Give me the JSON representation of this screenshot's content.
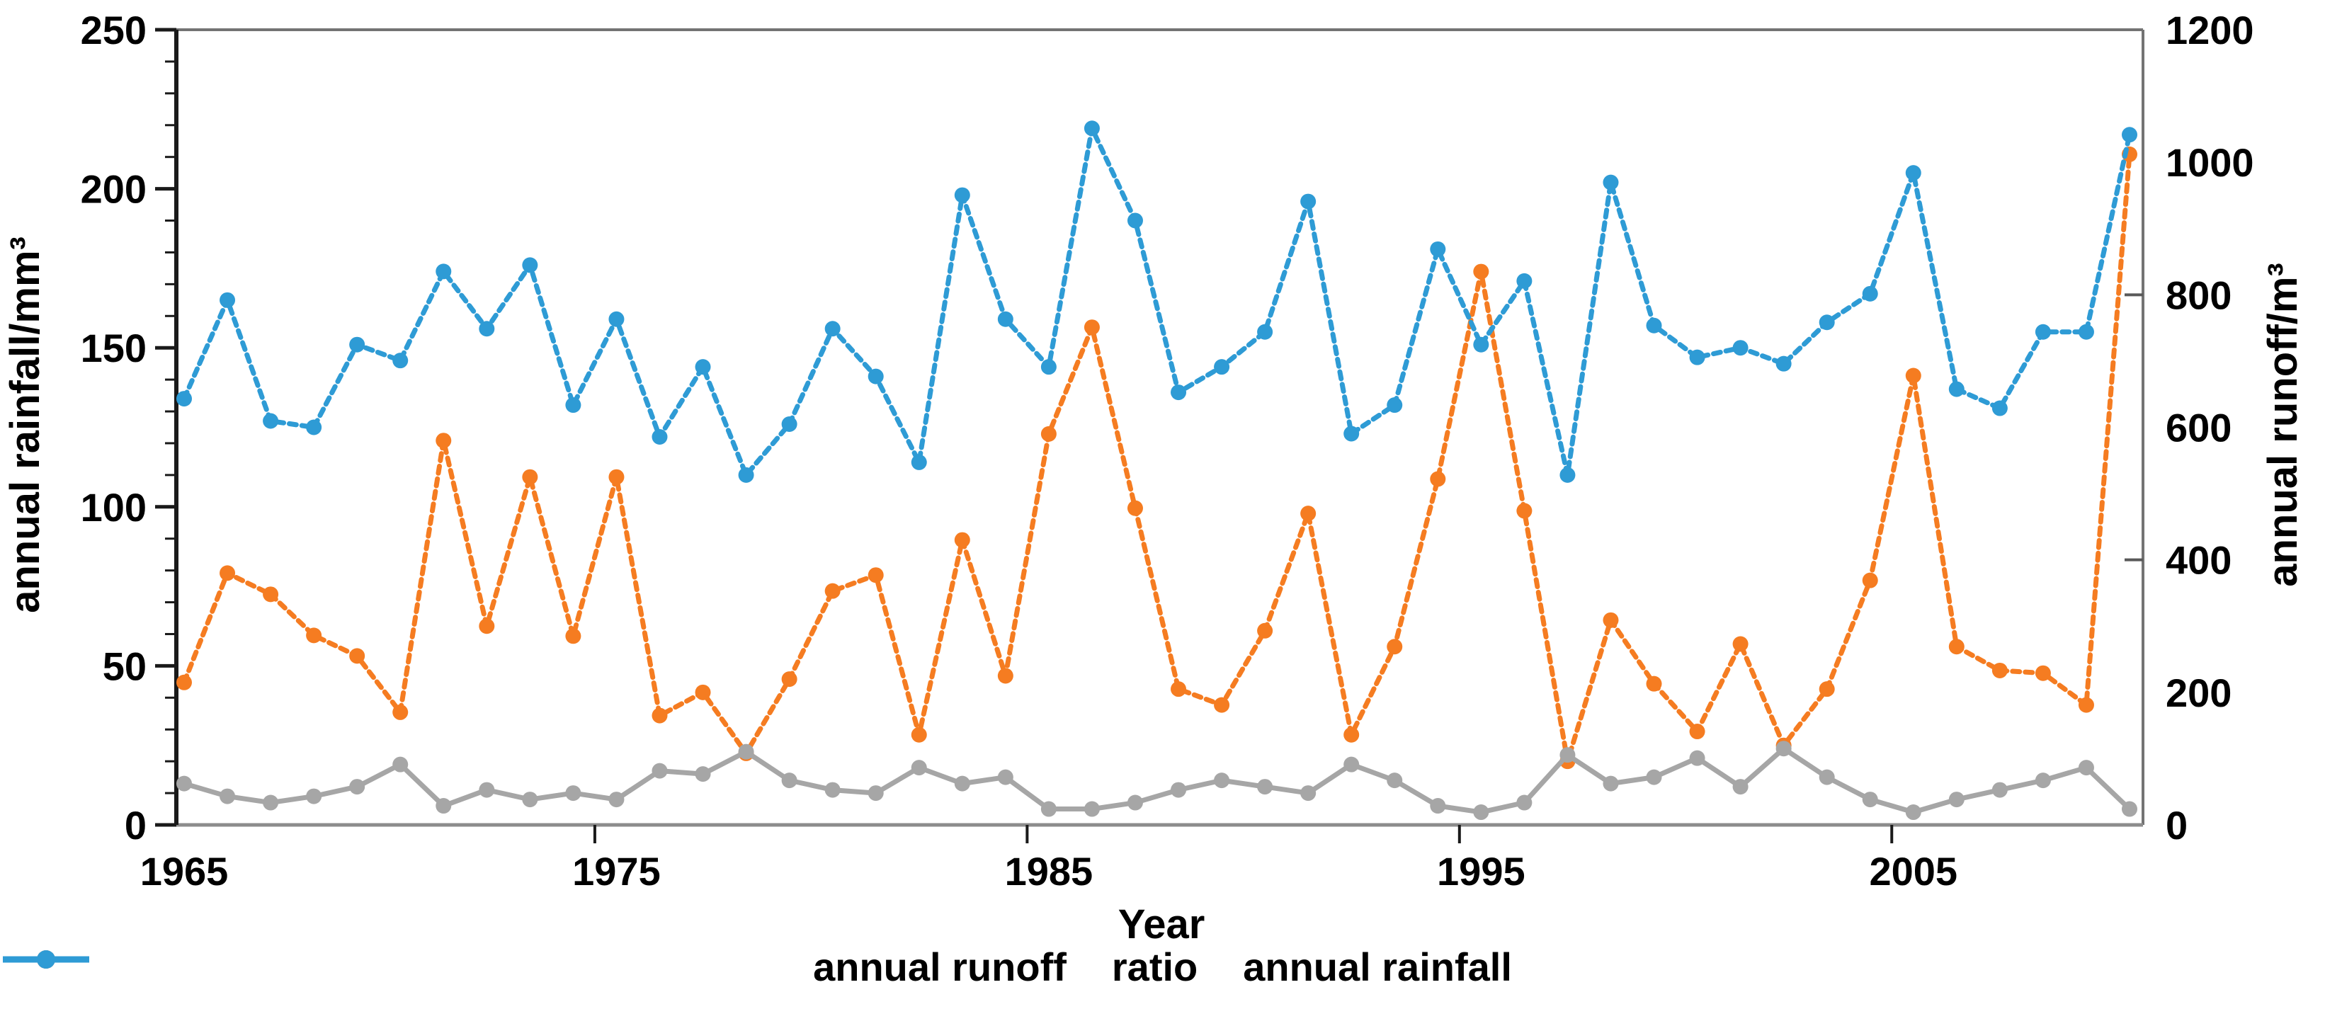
{
  "figure": {
    "xlabel": "Year",
    "left_axis_title": "annual rainfall/mm³",
    "right_axis_title": "annual runoff/m³"
  },
  "chart_data": {
    "type": "line",
    "title": "",
    "xlabel": "Year",
    "left_ylabel": "annual rainfall/mm³",
    "right_ylabel": "annual runoff/m³",
    "grid": false,
    "legend_position": "bottom",
    "x": [
      1965,
      1966,
      1967,
      1968,
      1969,
      1970,
      1971,
      1972,
      1973,
      1974,
      1975,
      1976,
      1977,
      1978,
      1979,
      1980,
      1981,
      1982,
      1983,
      1984,
      1985,
      1986,
      1987,
      1988,
      1989,
      1990,
      1991,
      1992,
      1993,
      1994,
      1995,
      1996,
      1997,
      1998,
      1999,
      2000,
      2001,
      2002,
      2003,
      2004,
      2005,
      2006,
      2007,
      2008,
      2009,
      2010
    ],
    "x_tick_labels": [
      1965,
      1975,
      1985,
      1995,
      2005
    ],
    "left_axis": {
      "min": 0,
      "max": 250,
      "label_step": 50,
      "minor_step": 10
    },
    "right_axis": {
      "min": 0,
      "max": 1200,
      "label_step": 200,
      "tick_marks": [
        400,
        800
      ]
    },
    "series": [
      {
        "name": "annual runoff",
        "axis": "right",
        "color": "#F57C21",
        "dashed": true,
        "values": [
          215,
          380,
          348,
          286,
          255,
          170,
          580,
          300,
          525,
          285,
          525,
          165,
          200,
          108,
          220,
          353,
          377,
          136,
          430,
          225,
          590,
          751,
          478,
          205,
          181,
          293,
          470,
          136,
          269,
          522,
          835,
          474,
          96,
          309,
          213,
          141,
          273,
          120,
          205,
          369,
          678,
          269,
          233,
          229,
          181,
          1012
        ]
      },
      {
        "name": "ratio",
        "axis": "left",
        "color": "#A6A6A6",
        "dashed": false,
        "values": [
          13,
          9,
          7,
          9,
          12,
          19,
          6,
          11,
          8,
          10,
          8,
          17,
          16,
          23,
          14,
          11,
          10,
          18,
          13,
          15,
          5,
          5,
          7,
          11,
          14,
          12,
          10,
          19,
          14,
          6,
          4,
          7,
          22,
          13,
          15,
          21,
          12,
          24,
          15,
          8,
          4,
          8,
          11,
          14,
          18,
          5
        ]
      },
      {
        "name": "annual rainfall",
        "axis": "left",
        "color": "#2E9BD5",
        "dashed": true,
        "values": [
          134,
          165,
          127,
          125,
          151,
          146,
          174,
          156,
          176,
          132,
          159,
          122,
          144,
          110,
          126,
          156,
          141,
          114,
          198,
          159,
          144,
          219,
          190,
          136,
          144,
          155,
          196,
          123,
          132,
          181,
          151,
          171,
          110,
          202,
          157,
          147,
          150,
          145,
          158,
          167,
          205,
          137,
          131,
          155,
          155,
          217
        ]
      }
    ]
  }
}
